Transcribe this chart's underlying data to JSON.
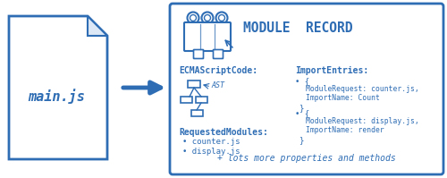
{
  "bg_color": "#ffffff",
  "blue": "#2e6db4",
  "file_label": "main.js",
  "module_title": "MODULE  RECORD",
  "ecma_label": "ECMAScriptCode:",
  "ast_label": "AST",
  "req_label": "RequestedModules:",
  "req_items": [
    "counter.js",
    "display.js"
  ],
  "import_label": "ImportEntries:",
  "import_entry1": [
    "ModuleRequest: counter.js,",
    "ImportName: Count"
  ],
  "import_entry2": [
    "ModuleRequest: display.js,",
    "ImportName: render"
  ],
  "footer": "+ lots more properties and methods"
}
